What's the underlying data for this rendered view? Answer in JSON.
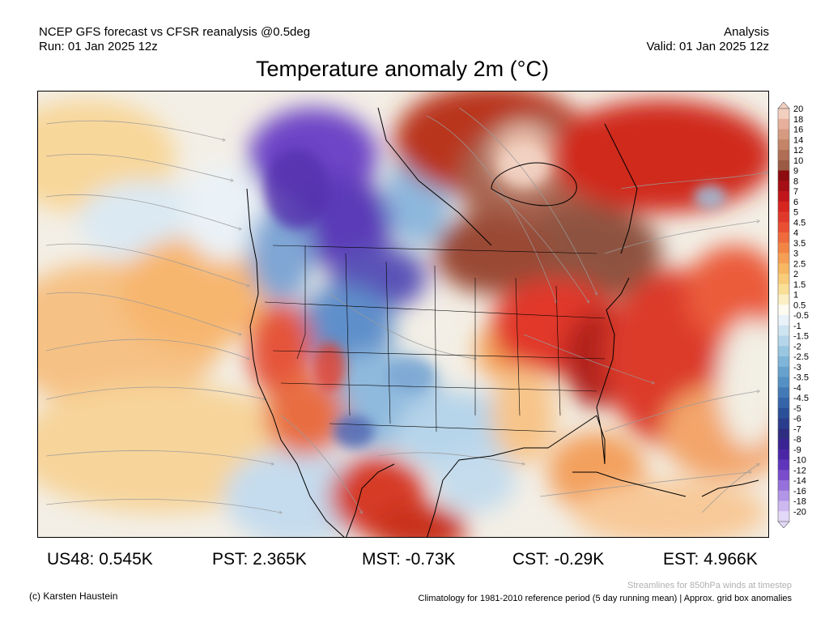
{
  "header": {
    "model_line": "NCEP GFS forecast vs CFSR reanalysis @0.5deg",
    "run_line": "Run: 01 Jan 2025 12z",
    "product": "Analysis",
    "valid_line": "Valid: 01 Jan 2025 12z"
  },
  "title": "Temperature anomaly 2m (°C)",
  "map": {
    "region": "North America",
    "overlay": "streamlines",
    "icons": [
      "streamline-arrows",
      "coastline",
      "state-borders"
    ]
  },
  "colorbar": {
    "labels": [
      "20",
      "18",
      "16",
      "14",
      "12",
      "10",
      "9",
      "8",
      "7",
      "6",
      "5",
      "4.5",
      "4",
      "3.5",
      "3",
      "2.5",
      "2",
      "1.5",
      "1",
      "0.5",
      "-0.5",
      "-1",
      "-1.5",
      "-2",
      "-2.5",
      "-3",
      "-3.5",
      "-4",
      "-4.5",
      "-5",
      "-6",
      "-7",
      "-8",
      "-9",
      "-10",
      "-12",
      "-14",
      "-16",
      "-18",
      "-20"
    ],
    "colors": [
      "#f3cfc0",
      "#e6b09c",
      "#d59a80",
      "#c38468",
      "#b06e55",
      "#9a5a44",
      "#8c0c10",
      "#a50f15",
      "#c0161b",
      "#d7251f",
      "#e0392c",
      "#ea4e33",
      "#ef6a3d",
      "#f28546",
      "#f59f55",
      "#f7b763",
      "#f8cc78",
      "#fadf97",
      "#fbefc4",
      "#fdfaf0",
      "#e8f2f8",
      "#cfe4f1",
      "#b5d6ea",
      "#99c6e1",
      "#7fb5d8",
      "#67a2cd",
      "#5490c3",
      "#4379b5",
      "#3564a8",
      "#2b4f99",
      "#2a3d8c",
      "#2e2d80",
      "#3a2392",
      "#4a26a6",
      "#5f35bb",
      "#7a4dcc",
      "#9670db",
      "#b395e7",
      "#cdb8f0",
      "#e4d8f8"
    ]
  },
  "regional_stats": [
    {
      "label": "US48: 0.545K"
    },
    {
      "label": "PST: 2.365K"
    },
    {
      "label": "MST: -0.73K"
    },
    {
      "label": "CST: -0.29K"
    },
    {
      "label": "EST: 4.966K"
    }
  ],
  "footer": {
    "credit": "(c) Karsten Haustein",
    "streamline_note": "Streamlines for 850hPa winds at timestep",
    "climatology_note": "Climatology for 1981-2010 reference period (5 day running mean) | Approx. grid box anomalies"
  }
}
